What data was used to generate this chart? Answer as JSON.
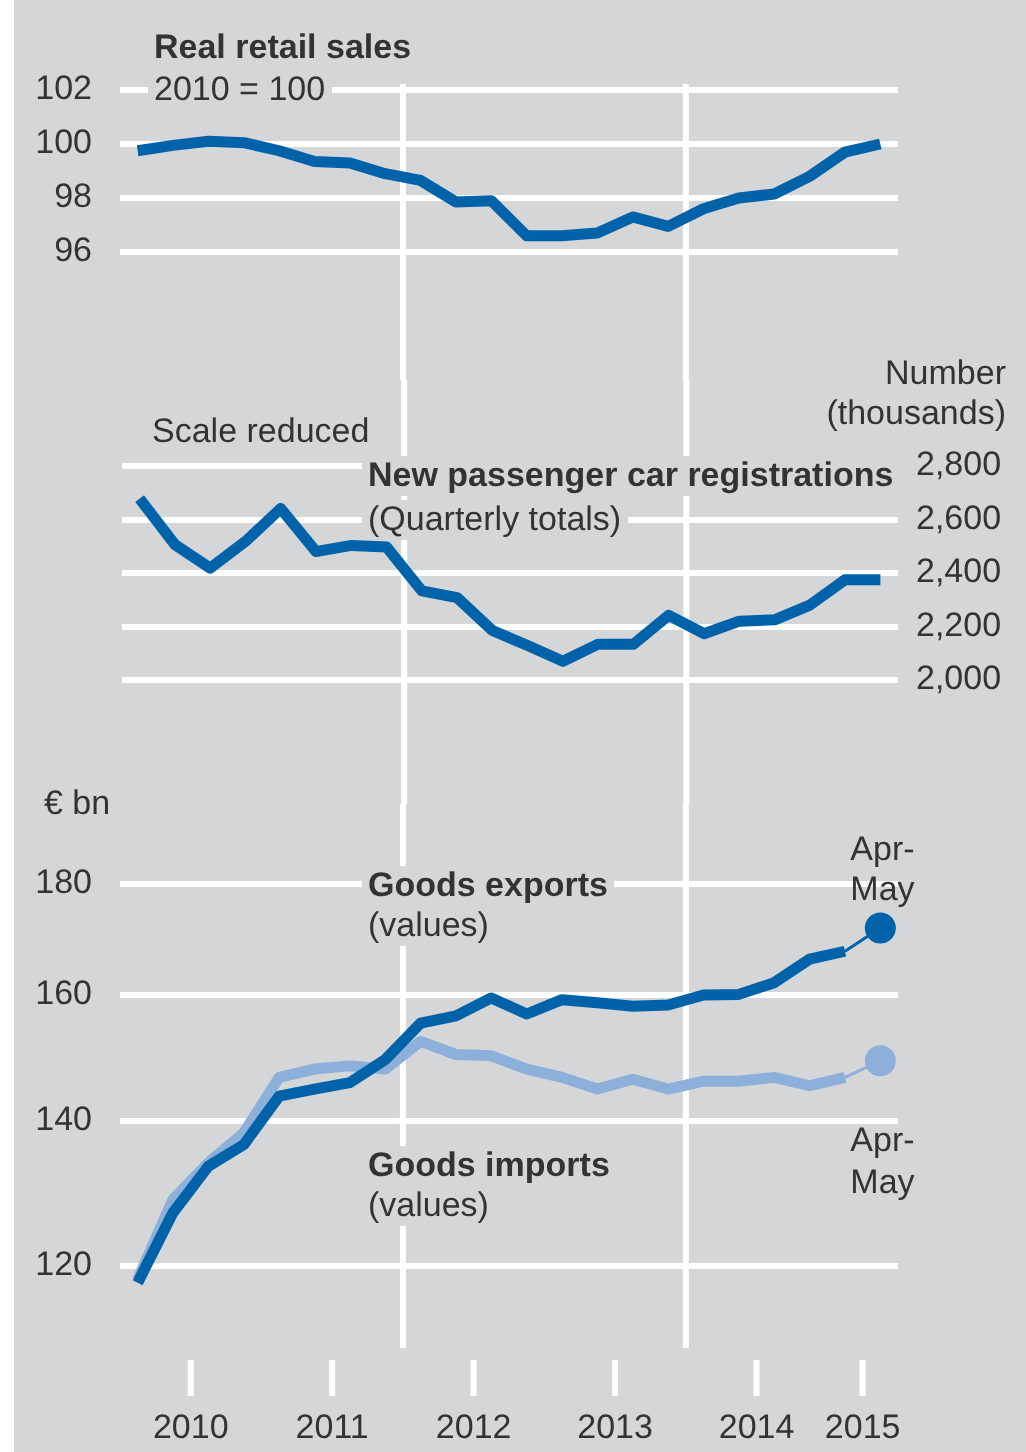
{
  "chart_data": [
    {
      "type": "line",
      "title": "Real retail sales",
      "subtitle": "2010 = 100",
      "x": [
        2010.125,
        2010.375,
        2010.625,
        2010.875,
        2011.125,
        2011.375,
        2011.625,
        2011.875,
        2012.125,
        2012.375,
        2012.625,
        2012.875,
        2013.125,
        2013.375,
        2013.625,
        2013.875,
        2014.125,
        2014.375,
        2014.625,
        2014.875,
        2015.125,
        2015.375
      ],
      "series": [
        {
          "color": "#0062a8",
          "values": [
            99.75,
            99.95,
            100.1,
            100.05,
            99.75,
            99.35,
            99.3,
            98.9,
            98.65,
            97.85,
            97.9,
            96.6,
            96.6,
            96.7,
            97.3,
            96.95,
            97.6,
            98.0,
            98.15,
            98.8,
            99.7,
            100.0
          ]
        }
      ],
      "xlim": [
        2010,
        2015.5
      ],
      "ylim": [
        96,
        102
      ],
      "yticks": [
        96,
        98,
        100,
        102
      ],
      "grid": "y",
      "tick_labels": "y",
      "ref_lines": [
        {
          "axis": "x",
          "value": 2012,
          "color": "#ffffff"
        },
        {
          "axis": "x",
          "value": 2014,
          "color": "#ffffff"
        }
      ]
    },
    {
      "type": "line",
      "title": "New passenger car registrations",
      "subtitle": "(Quarterly totals)",
      "y2label": "Number (thousands)",
      "annotations": [
        "Scale reduced"
      ],
      "x": [
        2010.125,
        2010.375,
        2010.625,
        2010.875,
        2011.125,
        2011.375,
        2011.625,
        2011.875,
        2012.125,
        2012.375,
        2012.625,
        2012.875,
        2013.125,
        2013.375,
        2013.625,
        2013.875,
        2014.125,
        2014.375,
        2014.625,
        2014.875,
        2015.125,
        2015.375
      ],
      "series": [
        {
          "color": "#0062a8",
          "axis": "y2",
          "values": [
            2678,
            2506,
            2418,
            2518,
            2641,
            2480,
            2503,
            2497,
            2333,
            2308,
            2185,
            2129,
            2070,
            2134,
            2134,
            2242,
            2173,
            2220,
            2225,
            2280,
            2375,
            2375
          ]
        }
      ],
      "xlim": [
        2010,
        2015.5
      ],
      "y2lim": [
        2000,
        2800
      ],
      "y2ticks": [
        {
          "value": 2000,
          "label": "2,000"
        },
        {
          "value": 2200,
          "label": "2,200"
        },
        {
          "value": 2400,
          "label": "2,400"
        },
        {
          "value": 2600,
          "label": "2,600"
        },
        {
          "value": 2800,
          "label": "2,800"
        }
      ],
      "grid": "y",
      "tick_labels": "y",
      "ref_lines": [
        {
          "axis": "x",
          "value": 2012,
          "color": "#ffffff"
        },
        {
          "axis": "x",
          "value": 2014,
          "color": "#ffffff"
        }
      ]
    },
    {
      "type": "line",
      "ylabel": "€ bn",
      "log": "y",
      "x": [
        2010.125,
        2010.375,
        2010.625,
        2010.875,
        2011.125,
        2011.375,
        2011.625,
        2011.875,
        2012.125,
        2012.375,
        2012.625,
        2012.875,
        2013.125,
        2013.375,
        2013.625,
        2013.875,
        2014.125,
        2014.375,
        2014.625,
        2014.875,
        2015.125,
        2015.375
      ],
      "series": [
        {
          "name": "Goods exports (values)",
          "color": "#0062a8",
          "values": [
            117.9,
            127.0,
            133.4,
            136.5,
            143.7,
            144.8,
            145.8,
            149.4,
            155.3,
            156.5,
            159.5,
            156.8,
            159.2,
            158.7,
            158.1,
            158.3,
            160.0,
            160.1,
            162.1,
            166.2,
            167.6,
            171.8
          ]
        },
        {
          "name": "Goods imports (values)",
          "color": "#8db0da",
          "values": [
            118.3,
            128.8,
            133.9,
            138.2,
            146.6,
            147.9,
            148.4,
            147.9,
            152.3,
            150.2,
            150.0,
            147.9,
            146.6,
            144.8,
            146.3,
            144.8,
            146.0,
            146.0,
            146.6,
            145.3,
            146.6,
            149.2
          ]
        },
        {
          "type": "scatter",
          "color": "#0062a8",
          "marker": "circle",
          "x": [
            2015.375
          ],
          "values": [
            171.8
          ]
        },
        {
          "type": "scatter",
          "color": "#8db0da",
          "marker": "circle",
          "x": [
            2015.375
          ],
          "values": [
            149.2
          ]
        }
      ],
      "annotations": [
        {
          "text": "Apr-May",
          "x": 2015.375,
          "y": 171.8
        },
        {
          "text": "Apr-May",
          "x": 2015.375,
          "y": 149.2
        }
      ],
      "xlim": [
        2010,
        2015.5
      ],
      "ylim": [
        110,
        180
      ],
      "yticks": [
        120,
        140,
        160,
        180
      ],
      "xticks": [
        {
          "value": 2010.5,
          "label": "2010"
        },
        {
          "value": 2011.5,
          "label": "2011"
        },
        {
          "value": 2012.5,
          "label": "2012"
        },
        {
          "value": 2013.5,
          "label": "2013"
        },
        {
          "value": 2014.5,
          "label": "2014"
        },
        {
          "value": 2015.25,
          "label": "2015"
        }
      ],
      "grid": "y",
      "ref_lines": [
        {
          "axis": "x",
          "value": 2012,
          "color": "#ffffff"
        },
        {
          "axis": "x",
          "value": 2014,
          "color": "#ffffff"
        }
      ]
    }
  ]
}
